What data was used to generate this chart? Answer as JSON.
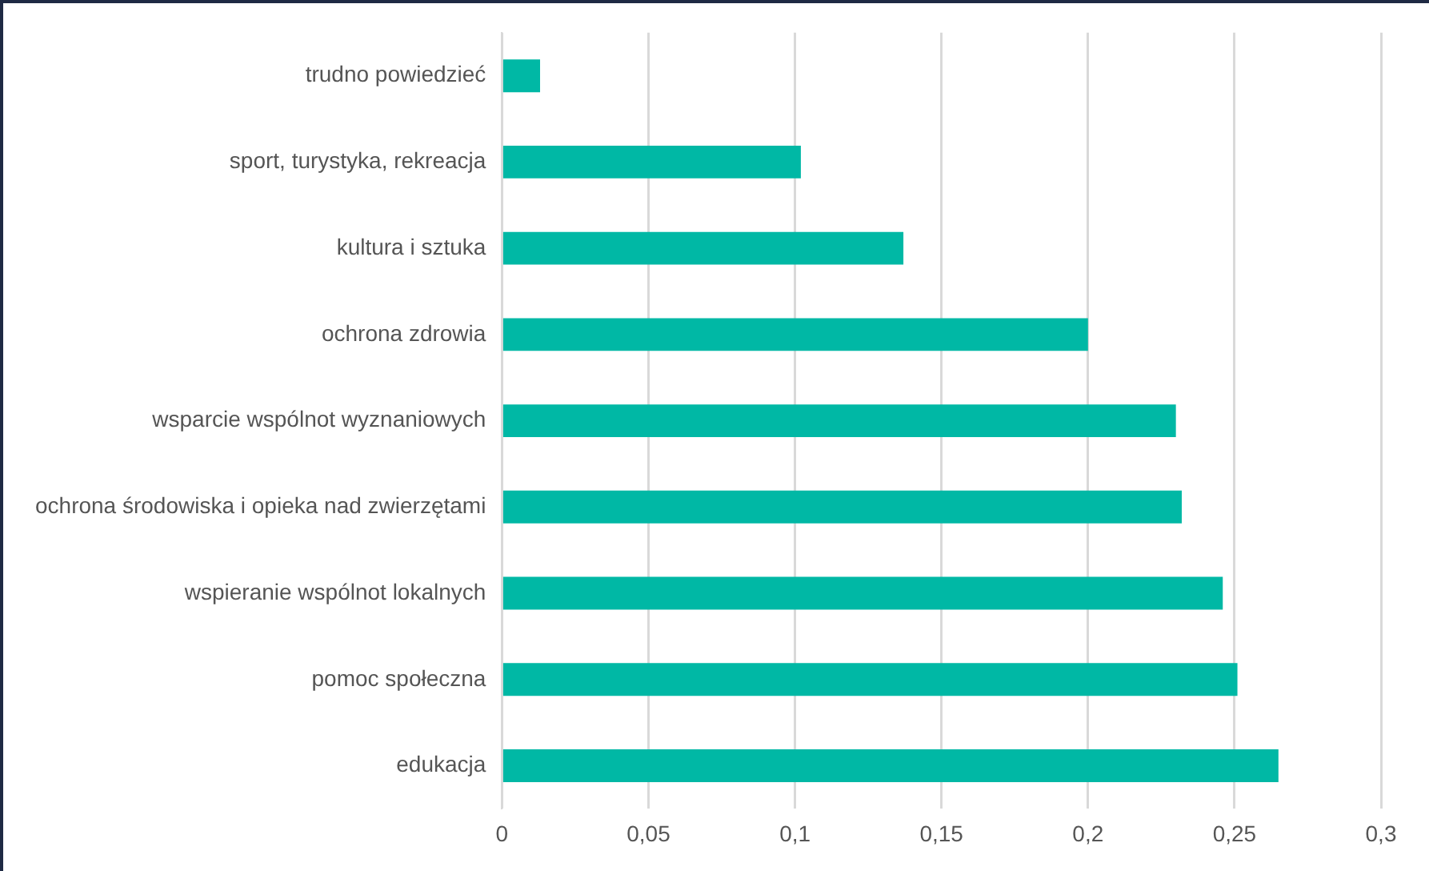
{
  "chart_data": {
    "type": "bar",
    "orientation": "horizontal",
    "categories": [
      "trudno powiedzieć",
      "sport, turystyka, rekreacja",
      "kultura i sztuka",
      "ochrona zdrowia",
      "wsparcie wspólnot wyznaniowych",
      "ochrona środowiska i opieka nad zwierzętami",
      "wspieranie wspólnot lokalnych",
      "pomoc społeczna",
      "edukacja"
    ],
    "values": [
      0.013,
      0.102,
      0.137,
      0.2,
      0.23,
      0.232,
      0.246,
      0.251,
      0.265
    ],
    "color": "#00b8a5",
    "xlim": [
      0,
      0.3
    ],
    "xticks": [
      0,
      {
        "value": 0.05,
        "label": "0,05"
      },
      {
        "value": 0.1,
        "label": "0,1"
      },
      {
        "value": 0.15,
        "label": "0,15"
      },
      {
        "value": 0.2,
        "label": "0,2"
      },
      {
        "value": 0.25,
        "label": "0,25"
      },
      {
        "value": 0.3,
        "label": "0,3"
      }
    ],
    "grid": "x"
  }
}
